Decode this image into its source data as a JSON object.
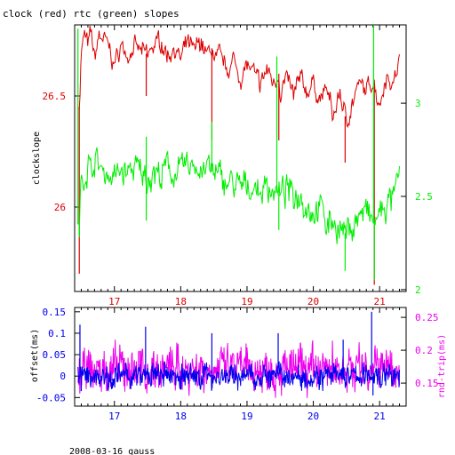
{
  "title": "clock (red) rtc (green) slopes",
  "footer": "2008-03-16 gauss",
  "colors": {
    "clock": "#dd0000",
    "rtc": "#00ee00",
    "offset": "#0000ee",
    "rndtrip": "#ee00ee",
    "axis": "#000000"
  },
  "chart_data": [
    {
      "type": "line",
      "xlim": [
        16.4,
        21.4
      ],
      "x_ticks": [
        "17",
        "18",
        "19",
        "20",
        "21"
      ],
      "ylabel": "clockslope",
      "y_left_lim": [
        25.62,
        26.82
      ],
      "y_left_ticks": [
        "26.5",
        "26"
      ],
      "y_right_lim": [
        1.99,
        3.42
      ],
      "y_right_ticks": [
        "3",
        "2.5",
        "2"
      ],
      "grid": false,
      "series": [
        {
          "axis": "left",
          "color": "red",
          "points": [
            [
              16.47,
              26.45
            ],
            [
              16.5,
              26.7
            ],
            [
              16.55,
              26.78
            ],
            [
              16.6,
              26.72
            ],
            [
              16.65,
              26.79
            ],
            [
              16.7,
              26.66
            ],
            [
              16.75,
              26.76
            ],
            [
              16.8,
              26.77
            ],
            [
              16.9,
              26.73
            ],
            [
              17.0,
              26.64
            ],
            [
              17.1,
              26.73
            ],
            [
              17.2,
              26.68
            ],
            [
              17.3,
              26.72
            ],
            [
              17.4,
              26.7
            ],
            [
              17.48,
              26.69
            ],
            [
              17.5,
              26.68
            ],
            [
              17.6,
              26.73
            ],
            [
              17.7,
              26.75
            ],
            [
              17.8,
              26.68
            ],
            [
              17.9,
              26.72
            ],
            [
              18.0,
              26.66
            ],
            [
              18.1,
              26.74
            ],
            [
              18.2,
              26.7
            ],
            [
              18.3,
              26.75
            ],
            [
              18.4,
              26.68
            ],
            [
              18.48,
              26.72
            ],
            [
              18.5,
              26.65
            ],
            [
              18.6,
              26.68
            ],
            [
              18.7,
              26.62
            ],
            [
              18.8,
              26.66
            ],
            [
              18.9,
              26.58
            ],
            [
              19.0,
              26.64
            ],
            [
              19.1,
              26.6
            ],
            [
              19.2,
              26.55
            ],
            [
              19.3,
              26.62
            ],
            [
              19.4,
              26.56
            ],
            [
              19.48,
              26.6
            ],
            [
              19.5,
              26.52
            ],
            [
              19.6,
              26.58
            ],
            [
              19.7,
              26.5
            ],
            [
              19.8,
              26.58
            ],
            [
              19.9,
              26.52
            ],
            [
              20.0,
              26.56
            ],
            [
              20.1,
              26.48
            ],
            [
              20.2,
              26.54
            ],
            [
              20.3,
              26.4
            ],
            [
              20.4,
              26.52
            ],
            [
              20.5,
              26.38
            ],
            [
              20.6,
              26.48
            ],
            [
              20.7,
              26.55
            ],
            [
              20.8,
              26.52
            ],
            [
              20.9,
              26.58
            ],
            [
              21.0,
              26.46
            ],
            [
              21.1,
              26.6
            ],
            [
              21.2,
              26.55
            ],
            [
              21.3,
              26.66
            ]
          ],
          "spikes": [
            [
              16.47,
              25.7
            ],
            [
              17.48,
              26.5
            ],
            [
              18.47,
              26.3
            ],
            [
              19.48,
              26.3
            ],
            [
              20.48,
              26.2
            ],
            [
              20.92,
              25.65
            ]
          ]
        },
        {
          "axis": "right",
          "color": "green",
          "points": [
            [
              16.47,
              2.35
            ],
            [
              16.5,
              2.58
            ],
            [
              16.55,
              2.62
            ],
            [
              16.6,
              2.68
            ],
            [
              16.65,
              2.64
            ],
            [
              16.7,
              2.7
            ],
            [
              16.8,
              2.65
            ],
            [
              16.9,
              2.62
            ],
            [
              17.0,
              2.6
            ],
            [
              17.1,
              2.64
            ],
            [
              17.2,
              2.62
            ],
            [
              17.3,
              2.66
            ],
            [
              17.4,
              2.62
            ],
            [
              17.5,
              2.6
            ],
            [
              17.6,
              2.64
            ],
            [
              17.7,
              2.6
            ],
            [
              17.8,
              2.66
            ],
            [
              17.9,
              2.62
            ],
            [
              18.0,
              2.64
            ],
            [
              18.1,
              2.66
            ],
            [
              18.2,
              2.68
            ],
            [
              18.3,
              2.64
            ],
            [
              18.4,
              2.66
            ],
            [
              18.5,
              2.62
            ],
            [
              18.6,
              2.6
            ],
            [
              18.7,
              2.58
            ],
            [
              18.8,
              2.56
            ],
            [
              18.9,
              2.54
            ],
            [
              19.0,
              2.56
            ],
            [
              19.1,
              2.55
            ],
            [
              19.2,
              2.52
            ],
            [
              19.3,
              2.56
            ],
            [
              19.4,
              2.54
            ],
            [
              19.5,
              2.5
            ],
            [
              19.6,
              2.54
            ],
            [
              19.7,
              2.5
            ],
            [
              19.8,
              2.52
            ],
            [
              19.9,
              2.45
            ],
            [
              20.0,
              2.42
            ],
            [
              20.1,
              2.45
            ],
            [
              20.2,
              2.35
            ],
            [
              20.3,
              2.38
            ],
            [
              20.4,
              2.32
            ],
            [
              20.5,
              2.3
            ],
            [
              20.6,
              2.35
            ],
            [
              20.7,
              2.4
            ],
            [
              20.8,
              2.42
            ],
            [
              20.9,
              2.35
            ],
            [
              21.0,
              2.4
            ],
            [
              21.1,
              2.45
            ],
            [
              21.2,
              2.48
            ],
            [
              21.3,
              2.6
            ]
          ],
          "spikes": [
            [
              16.45,
              3.4
            ],
            [
              16.47,
              2.28
            ],
            [
              17.48,
              2.82
            ],
            [
              17.48,
              2.37
            ],
            [
              18.47,
              2.9
            ],
            [
              19.45,
              3.25
            ],
            [
              19.48,
              2.32
            ],
            [
              20.48,
              2.1
            ],
            [
              20.91,
              3.42
            ],
            [
              20.92,
              2.05
            ]
          ]
        }
      ]
    },
    {
      "type": "line",
      "xlim": [
        16.4,
        21.4
      ],
      "x_ticks": [
        "17",
        "18",
        "19",
        "20",
        "21"
      ],
      "ylabel": "offset(ms)",
      "y_left_lim": [
        -0.07,
        0.16
      ],
      "y_left_ticks": [
        "0.15",
        "0.1",
        "0.05",
        "0",
        "-0.05"
      ],
      "y2label": "rnd-trip(ms)",
      "y_right_lim": [
        0.115,
        0.265
      ],
      "y_right_ticks": [
        "0.25",
        "0.2",
        "0.15"
      ],
      "grid": false,
      "series": [
        {
          "axis": "right",
          "color": "magenta",
          "base": 0.165,
          "amplitude": 0.03,
          "points": [
            [
              16.45,
              0.165
            ],
            [
              17.0,
              0.17
            ],
            [
              18.0,
              0.172
            ],
            [
              19.0,
              0.17
            ],
            [
              20.0,
              0.172
            ],
            [
              21.0,
              0.174
            ],
            [
              21.3,
              0.174
            ]
          ]
        },
        {
          "axis": "left",
          "color": "blue",
          "base": 0.0,
          "amplitude": 0.025,
          "points": [
            [
              16.45,
              0.0
            ],
            [
              17.0,
              0.0
            ],
            [
              18.0,
              0.0
            ],
            [
              19.0,
              0.0
            ],
            [
              20.0,
              0.0
            ],
            [
              21.0,
              0.0
            ],
            [
              21.3,
              0.0
            ]
          ],
          "spikes": [
            [
              16.48,
              0.12
            ],
            [
              16.5,
              -0.035
            ],
            [
              17.47,
              0.115
            ],
            [
              18.47,
              0.1
            ],
            [
              19.47,
              0.1
            ],
            [
              20.45,
              0.085
            ],
            [
              20.88,
              0.15
            ],
            [
              20.9,
              -0.045
            ]
          ]
        }
      ]
    }
  ]
}
